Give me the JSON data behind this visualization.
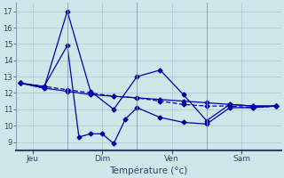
{
  "title": "Température (°c)",
  "background_color": "#cce8e8",
  "grid_color": "#aabbcc",
  "line_color": "#0000aa",
  "ylim": [
    8.5,
    17.5
  ],
  "yticks": [
    9,
    10,
    11,
    12,
    13,
    14,
    15,
    16,
    17
  ],
  "xlim": [
    -0.2,
    11.2
  ],
  "x_tick_pos": [
    0.5,
    3.5,
    6.5,
    9.5
  ],
  "x_tick_labels": [
    "Jeu",
    "Dim",
    "Ven",
    "Sam"
  ],
  "vline_pos": [
    2,
    5,
    8
  ],
  "line1_x": [
    0,
    1,
    2,
    3,
    4,
    5,
    6,
    7,
    8,
    9,
    10,
    11
  ],
  "line1_y": [
    12.6,
    12.3,
    17.0,
    12.1,
    11.0,
    13.0,
    13.4,
    11.9,
    10.3,
    11.3,
    11.2,
    11.2
  ],
  "line2_x": [
    0,
    1,
    2,
    2.5,
    3,
    3.5,
    4,
    4.5,
    5,
    6,
    7,
    8,
    9,
    10,
    11
  ],
  "line2_y": [
    12.6,
    12.4,
    14.9,
    9.3,
    9.5,
    9.5,
    8.9,
    10.4,
    11.1,
    10.5,
    10.2,
    10.1,
    11.1,
    11.1,
    11.2
  ],
  "line3_x": [
    0,
    1,
    2,
    3,
    4,
    5,
    6,
    7,
    8,
    9,
    10,
    11
  ],
  "line3_y": [
    12.6,
    12.4,
    12.2,
    12.0,
    11.8,
    11.7,
    11.5,
    11.3,
    11.2,
    11.2,
    11.1,
    11.2
  ],
  "line4_x": [
    0,
    1,
    2,
    3,
    4,
    5,
    6,
    7,
    8,
    9,
    10,
    11
  ],
  "line4_y": [
    12.6,
    12.3,
    12.1,
    11.9,
    11.8,
    11.7,
    11.6,
    11.5,
    11.4,
    11.3,
    11.2,
    11.2
  ]
}
